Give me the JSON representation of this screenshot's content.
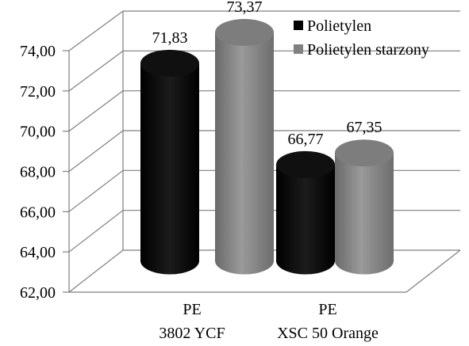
{
  "chart_data": {
    "type": "bar",
    "categories": [
      [
        "PE",
        "3802 YCF"
      ],
      [
        "PE",
        "XSC 50 Orange"
      ]
    ],
    "series": [
      {
        "name": "Polietylen",
        "values": [
          71.83,
          66.77
        ],
        "labels": [
          "71,83",
          "66,77"
        ],
        "color": "#000000"
      },
      {
        "name": "Polietylen starzony",
        "values": [
          73.37,
          67.35
        ],
        "labels": [
          "73,37",
          "67,35"
        ],
        "color": "#808080"
      }
    ],
    "ylim": [
      62,
      74
    ],
    "yticks": [
      "62,00",
      "64,00",
      "66,00",
      "68,00",
      "70,00",
      "72,00",
      "74,00"
    ],
    "grid": true,
    "legend": "top-right",
    "title": "",
    "xlabel": "",
    "ylabel": ""
  }
}
